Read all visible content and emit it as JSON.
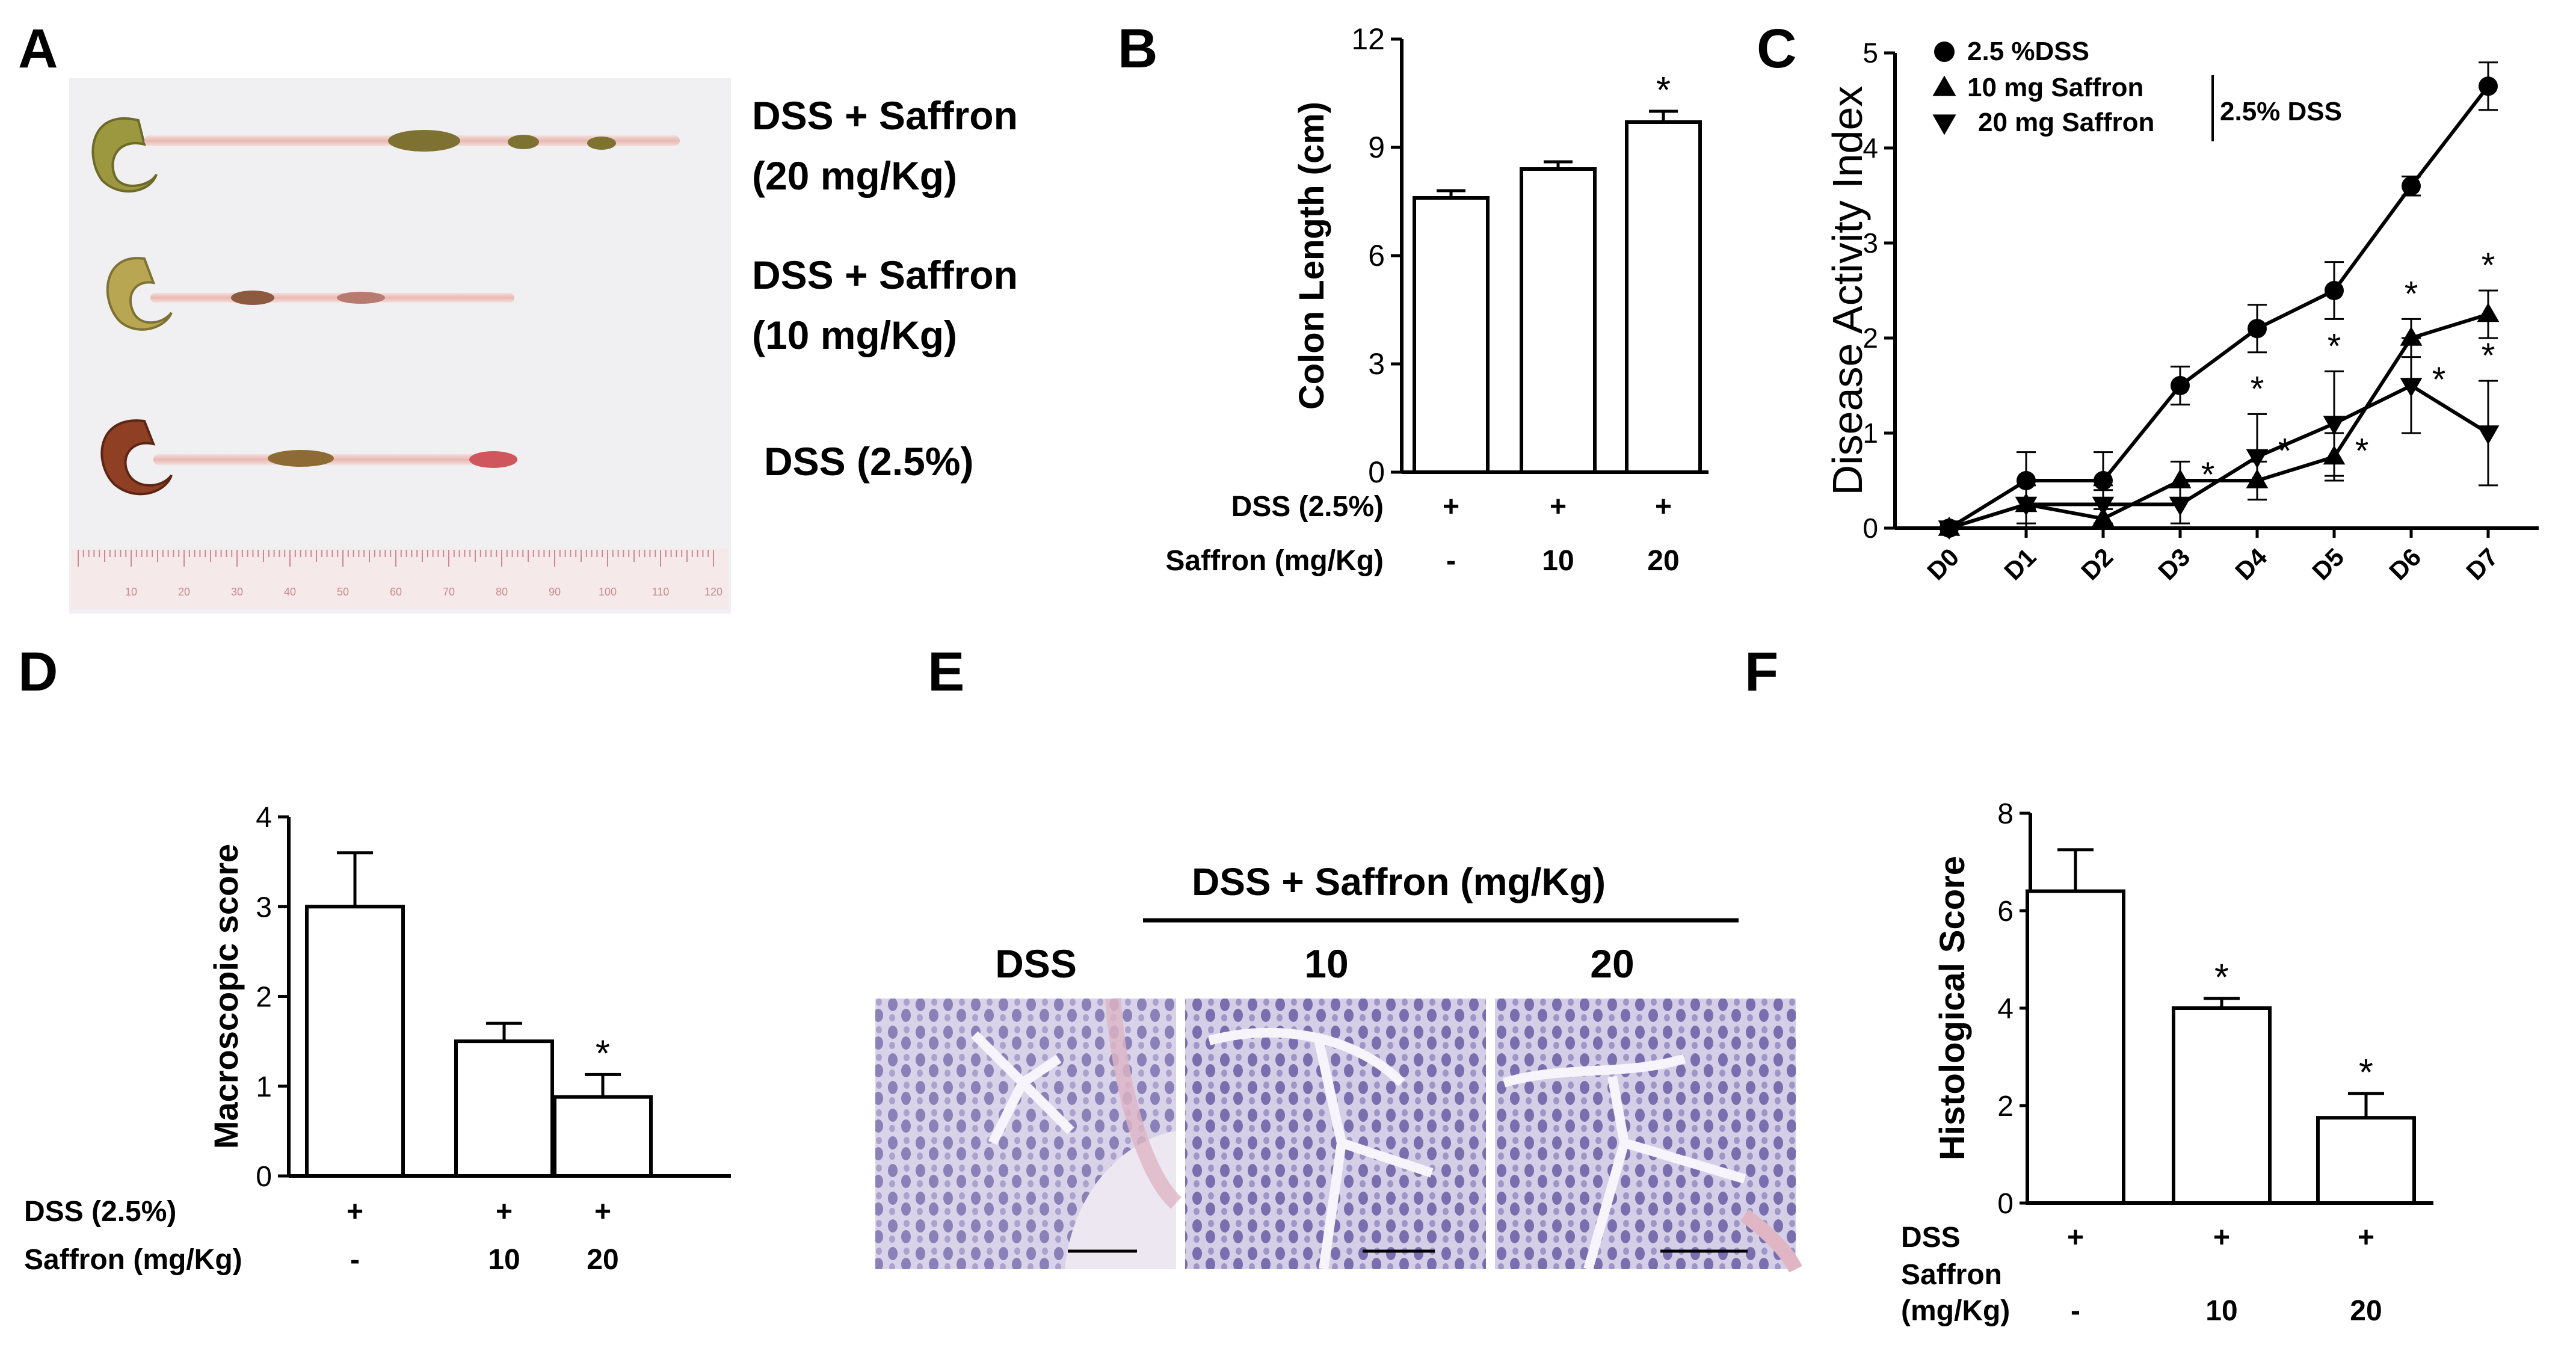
{
  "panel_letters": [
    "A",
    "B",
    "C",
    "D",
    "E",
    "F"
  ],
  "panelA": {
    "labels": [
      "DSS + Saffron",
      "(20 mg/Kg)",
      "DSS + Saffron",
      "(10 mg/Kg)",
      "DSS (2.5%)"
    ],
    "ruler_ticks": [
      "10",
      "20",
      "30",
      "40",
      "50",
      "60",
      "70",
      "80",
      "90",
      "100",
      "110",
      "120"
    ]
  },
  "panelE": {
    "header": "DSS + Saffron (mg/Kg)",
    "columns": [
      "DSS",
      "10",
      "20"
    ]
  },
  "colors": {
    "bar_fill": "#ffffff",
    "ink": "#000000",
    "tissue_stain": "#5a4f9c"
  },
  "chart_data": [
    {
      "panel": "B",
      "type": "bar",
      "categories": [
        "",
        "",
        ""
      ],
      "values": [
        7.6,
        8.4,
        9.7
      ],
      "errors": [
        0.2,
        0.2,
        0.3
      ],
      "significant": [
        false,
        false,
        true
      ],
      "ylabel": "Colon Length  (cm)",
      "ylim": [
        0,
        12
      ],
      "yticks": [
        "0",
        "3",
        "6",
        "9",
        "12"
      ],
      "rows": [
        {
          "label": "DSS (2.5%)",
          "values": [
            "+",
            "+",
            "+"
          ]
        },
        {
          "label": "Saffron (mg/Kg)",
          "values": [
            "-",
            "10",
            "20"
          ]
        }
      ],
      "sig_symbol": "*"
    },
    {
      "panel": "C",
      "type": "line",
      "x": [
        "D0",
        "D1",
        "D2",
        "D3",
        "D4",
        "D5",
        "D6",
        "D7"
      ],
      "ylabel": "Disease Activity Index",
      "ylim": [
        0,
        5
      ],
      "yticks": [
        "0",
        "1",
        "2",
        "3",
        "4",
        "5"
      ],
      "legend_position": "top-left",
      "legend_group_label": "2.5% DSS",
      "series": [
        {
          "name": "2.5 %DSS",
          "marker": "circle",
          "values": [
            0,
            0.5,
            0.5,
            1.5,
            2.1,
            2.5,
            3.6,
            4.65
          ],
          "errors": [
            0,
            0.3,
            0.3,
            0.2,
            0.25,
            0.3,
            0.1,
            0.25
          ]
        },
        {
          "name": "10 mg Saffron",
          "marker": "triangle-up",
          "values": [
            0,
            0.25,
            0.1,
            0.5,
            0.5,
            0.75,
            2.0,
            2.25
          ],
          "errors": [
            0,
            0.25,
            0.3,
            0.2,
            0.2,
            0.25,
            0.2,
            0.25
          ]
        },
        {
          "name": "20 mg Saffron",
          "marker": "triangle-down",
          "values": [
            0,
            0.25,
            0.25,
            0.25,
            0.75,
            1.1,
            1.5,
            1.0
          ],
          "errors": [
            0,
            0.2,
            0.2,
            0.2,
            0.45,
            0.55,
            0.5,
            0.55
          ]
        }
      ],
      "sig_symbol": "*"
    },
    {
      "panel": "D",
      "type": "bar",
      "categories": [
        "",
        "",
        ""
      ],
      "values": [
        3.0,
        1.5,
        0.88
      ],
      "errors": [
        0.6,
        0.2,
        0.25
      ],
      "significant": [
        false,
        false,
        true
      ],
      "ylabel": "Macroscopic score",
      "ylim": [
        0,
        4
      ],
      "yticks": [
        "0",
        "1",
        "2",
        "3",
        "4"
      ],
      "rows": [
        {
          "label": "DSS (2.5%)",
          "values": [
            "+",
            "+",
            "+"
          ]
        },
        {
          "label": "Saffron (mg/Kg)",
          "values": [
            "-",
            "10",
            "20"
          ]
        }
      ],
      "sig_symbol": "*"
    },
    {
      "panel": "F",
      "type": "bar",
      "categories": [
        "",
        "",
        ""
      ],
      "values": [
        6.4,
        4.0,
        1.75
      ],
      "errors": [
        0.85,
        0.2,
        0.5
      ],
      "significant": [
        false,
        true,
        true
      ],
      "ylabel": "Histological Score",
      "ylim": [
        0,
        8
      ],
      "yticks": [
        "0",
        "2",
        "4",
        "6",
        "8"
      ],
      "rows": [
        {
          "label": "DSS",
          "values": [
            "+",
            "+",
            "+"
          ]
        },
        {
          "label": "Saffron",
          "values": [
            "",
            "",
            ""
          ]
        },
        {
          "label": "(mg/Kg)",
          "values": [
            "-",
            "10",
            "20"
          ]
        }
      ],
      "sig_symbol": "*"
    }
  ]
}
